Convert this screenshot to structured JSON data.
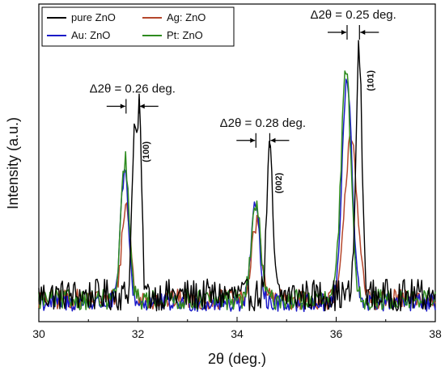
{
  "chart_data": {
    "type": "line",
    "xlabel": "2θ (deg.)",
    "ylabel": "Intensity (a.u.)",
    "xlim": [
      30,
      38
    ],
    "x_ticks": [
      "30",
      "32",
      "34",
      "36",
      "38"
    ],
    "ylim": [
      0,
      1
    ],
    "grid": false,
    "legend": "top-left",
    "noise_level": 0.03,
    "series": [
      {
        "name": "pure ZnO",
        "color": "#000000",
        "base": 0.06,
        "noise_amp": 0.07,
        "peaks": [
          {
            "center": 31.92,
            "height": 0.55,
            "width": 0.045
          },
          {
            "center": 32.03,
            "height": 0.62,
            "width": 0.045
          },
          {
            "center": 34.66,
            "height": 0.5,
            "width": 0.06
          },
          {
            "center": 36.46,
            "height": 0.86,
            "width": 0.06
          }
        ]
      },
      {
        "name": "Ag: ZnO",
        "color": "#b5472c",
        "base": 0.05,
        "noise_amp": 0.045,
        "peaks": [
          {
            "center": 31.76,
            "height": 0.33,
            "width": 0.09
          },
          {
            "center": 34.4,
            "height": 0.27,
            "width": 0.1
          },
          {
            "center": 36.3,
            "height": 0.59,
            "width": 0.12
          }
        ]
      },
      {
        "name": "Au: ZnO",
        "color": "#1a1ac8",
        "base": 0.04,
        "noise_amp": 0.04,
        "peaks": [
          {
            "center": 31.73,
            "height": 0.46,
            "width": 0.08
          },
          {
            "center": 34.37,
            "height": 0.33,
            "width": 0.09
          },
          {
            "center": 36.22,
            "height": 0.78,
            "width": 0.1
          }
        ]
      },
      {
        "name": "Pt: ZnO",
        "color": "#2e8b1f",
        "base": 0.05,
        "noise_amp": 0.045,
        "peaks": [
          {
            "center": 31.74,
            "height": 0.49,
            "width": 0.08
          },
          {
            "center": 34.38,
            "height": 0.34,
            "width": 0.09
          },
          {
            "center": 36.2,
            "height": 0.8,
            "width": 0.1
          }
        ]
      }
    ],
    "annotations": [
      {
        "label": "Δ2θ = 0.26 deg.",
        "x_left": 31.76,
        "x_right": 32.02,
        "y": 0.74,
        "miller": "(100)",
        "miller_x": 32.22,
        "miller_y": 0.58
      },
      {
        "label": "Δ2θ = 0.28 deg.",
        "x_left": 34.38,
        "x_right": 34.66,
        "y": 0.62,
        "miller": "(002)",
        "miller_x": 34.9,
        "miller_y": 0.47
      },
      {
        "label": "Δ2θ = 0.25 deg.",
        "x_left": 36.22,
        "x_right": 36.47,
        "y": 1.0,
        "miller": "(101)",
        "miller_x": 36.75,
        "miller_y": 0.83
      }
    ]
  }
}
